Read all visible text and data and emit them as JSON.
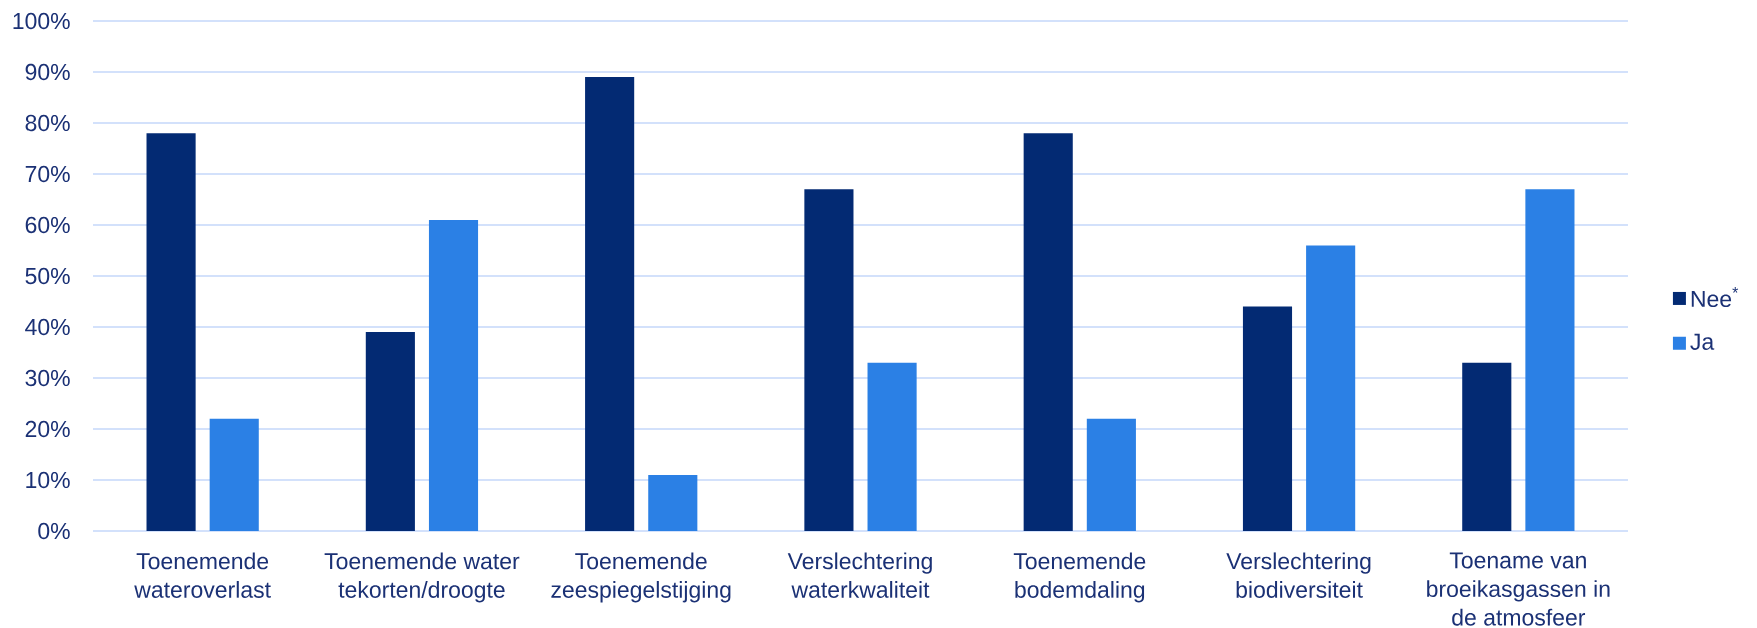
{
  "chart_data": {
    "type": "bar",
    "categories": [
      "Toenemende wateroverlast",
      "Toenemende water tekorten/droogte",
      "Toenemende zeespiegelstijging",
      "Verslechtering waterkwaliteit",
      "Toenemende bodemdaling",
      "Verslechtering biodiversiteit",
      "Toename van broeikasgassen in de atmosfeer"
    ],
    "series": [
      {
        "name": "Nee$^{*}$",
        "color": "#032a73",
        "values": [
          78,
          39,
          89,
          67,
          78,
          44,
          33
        ]
      },
      {
        "name": "Ja",
        "color": "#2b80e5",
        "values": [
          22,
          61,
          11,
          33,
          22,
          56,
          67
        ]
      }
    ],
    "ylim": [
      0,
      100
    ],
    "yticks": [
      {
        "value": 0,
        "label": "0%"
      },
      {
        "value": 10,
        "label": "10%"
      },
      {
        "value": 20,
        "label": "20%"
      },
      {
        "value": 30,
        "label": "30%"
      },
      {
        "value": 40,
        "label": "40%"
      },
      {
        "value": 50,
        "label": "50%"
      },
      {
        "value": 60,
        "label": "60%"
      },
      {
        "value": 70,
        "label": "70%"
      },
      {
        "value": 80,
        "label": "80%"
      },
      {
        "value": 90,
        "label": "90%"
      },
      {
        "value": 100,
        "label": "100%"
      }
    ],
    "grid": "y",
    "legend": "right"
  }
}
